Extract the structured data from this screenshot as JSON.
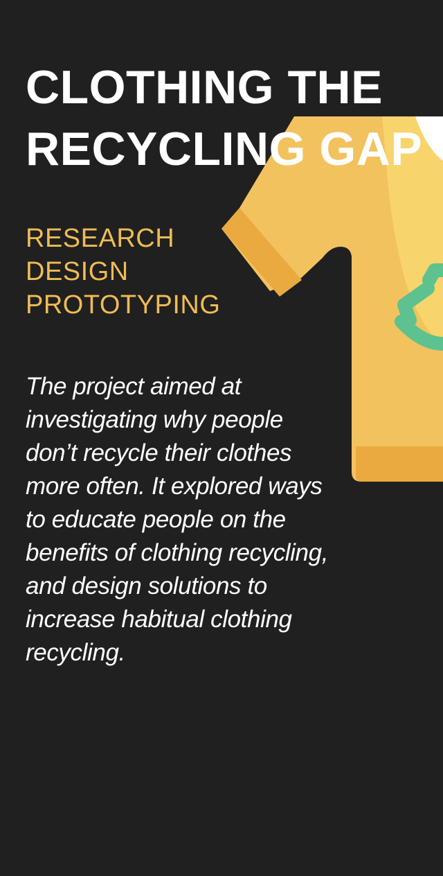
{
  "hero": {
    "title_line_1": "CLOTHING THE",
    "title_line_2": "RECYCLING GAP",
    "tags": [
      "RESEARCH",
      "DESIGN",
      "PROTOTYPING"
    ],
    "description": "The project aimed at investigating why people don’t recycle their clothes more often. It explored ways to educate people on the benefits of clothing recycling, and design solutions to increase habitual clothing recycling."
  },
  "illustration": {
    "icon": "recycled-sweater-icon",
    "sweater_color": "#f2c25f",
    "cuff_color": "#ebaa3f",
    "recycle_symbol_color": "#5dc28f",
    "collar_color": "#ffffff"
  },
  "colors": {
    "background": "#202020",
    "title": "#ffffff",
    "accent": "#efbc55",
    "body_text": "#ffffff"
  }
}
